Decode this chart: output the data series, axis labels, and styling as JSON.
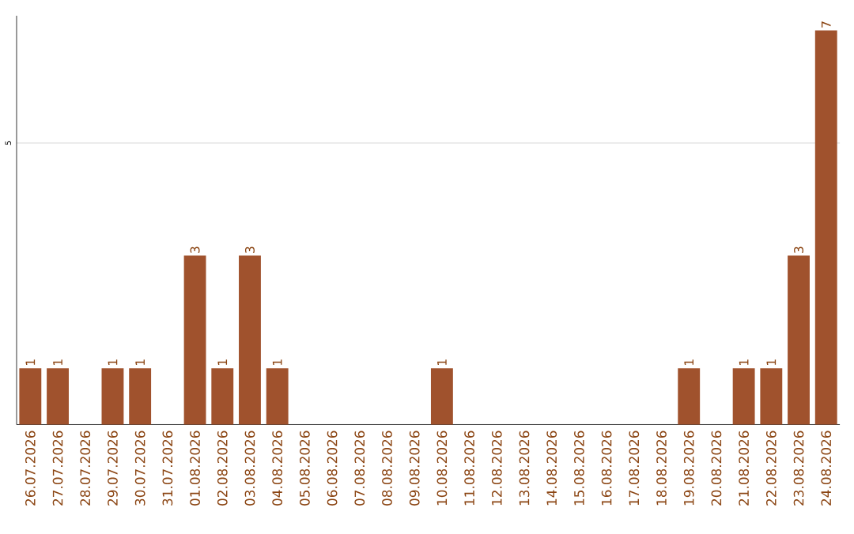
{
  "chart_data": {
    "type": "bar",
    "color": "#a0522d",
    "categories": [
      "26.07.2026",
      "27.07.2026",
      "28.07.2026",
      "29.07.2026",
      "30.07.2026",
      "31.07.2026",
      "01.08.2026",
      "02.08.2026",
      "03.08.2026",
      "04.08.2026",
      "05.08.2026",
      "06.08.2026",
      "07.08.2026",
      "08.08.2026",
      "09.08.2026",
      "10.08.2026",
      "11.08.2026",
      "12.08.2026",
      "13.08.2026",
      "14.08.2026",
      "15.08.2026",
      "16.08.2026",
      "17.08.2026",
      "18.08.2026",
      "19.08.2026",
      "20.08.2026",
      "21.08.2026",
      "22.08.2026",
      "23.08.2026",
      "24.08.2026"
    ],
    "values": [
      1,
      1,
      0,
      1,
      1,
      0,
      3,
      1,
      3,
      1,
      0,
      0,
      0,
      0,
      0,
      1,
      0,
      0,
      0,
      0,
      0,
      0,
      0,
      0,
      1,
      0,
      1,
      1,
      3,
      7
    ],
    "value_labels": [
      "1",
      "1",
      null,
      "1",
      "1",
      null,
      "3",
      "1",
      "3",
      "1",
      null,
      null,
      null,
      null,
      null,
      "1",
      null,
      null,
      null,
      null,
      null,
      null,
      null,
      null,
      "1",
      null,
      "1",
      "1",
      "3",
      "7"
    ],
    "ylim": [
      0,
      7.26
    ],
    "yticks": [
      5
    ],
    "grid": "y"
  }
}
